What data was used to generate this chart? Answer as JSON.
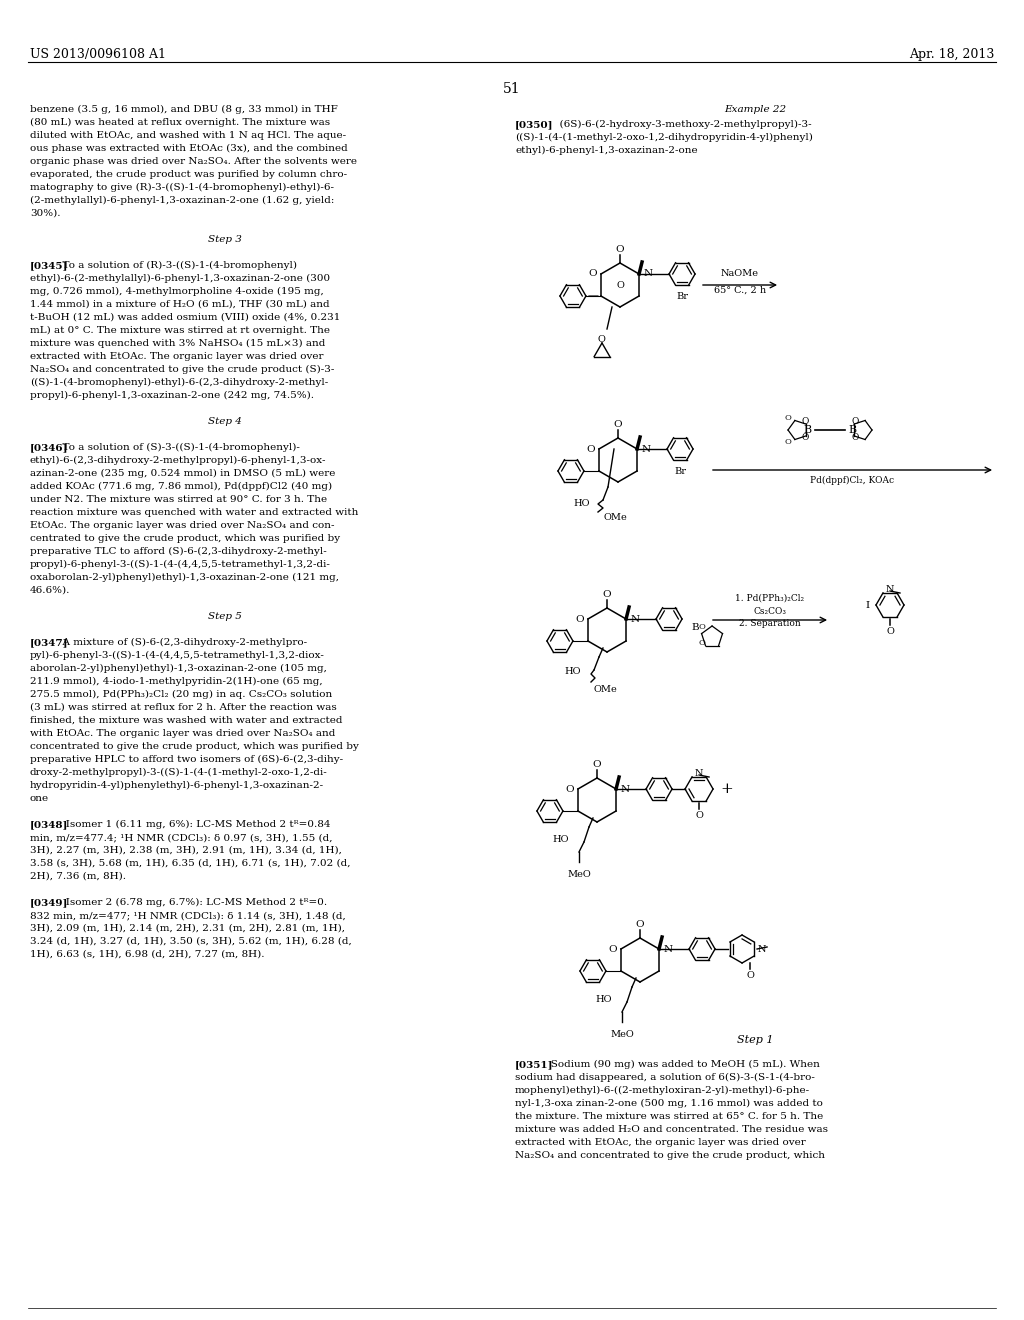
{
  "page_header_left": "US 2013/0096108 A1",
  "page_header_right": "Apr. 18, 2013",
  "page_number": "51",
  "bg": "#ffffff",
  "left_col": [
    "benzene (3.5 g, 16 mmol), and DBU (8 g, 33 mmol) in THF",
    "(80 mL) was heated at reflux overnight. The mixture was",
    "diluted with EtOAc, and washed with 1 N aq HCl. The aque-",
    "ous phase was extracted with EtOAc (3x), and the combined",
    "organic phase was dried over Na₂SO₄. After the solvents were",
    "evaporated, the crude product was purified by column chro-",
    "matography to give (R)-3-((S)-1-(4-bromophenyl)-ethyl)-6-",
    "(2-methylallyl)-6-phenyl-1,3-oxazinan-2-one (1.62 g, yield:",
    "30%).",
    "",
    "Step 3",
    "",
    "[0345]  To a solution of (R)-3-((S)-1-(4-bromophenyl)",
    "ethyl)-6-(2-methylallyl)-6-phenyl-1,3-oxazinan-2-one (300",
    "mg, 0.726 mmol), 4-methylmorpholine 4-oxide (195 mg,",
    "1.44 mmol) in a mixture of H₂O (6 mL), THF (30 mL) and",
    "t-BuOH (12 mL) was added osmium (VIII) oxide (4%, 0.231",
    "mL) at 0° C. The mixture was stirred at rt overnight. The",
    "mixture was quenched with 3% NaHSO₄ (15 mL×3) and",
    "extracted with EtOAc. The organic layer was dried over",
    "Na₂SO₄ and concentrated to give the crude product (S)-3-",
    "((S)-1-(4-bromophenyl)-ethyl)-6-(2,3-dihydroxy-2-methyl-",
    "propyl)-6-phenyl-1,3-oxazinan-2-one (242 mg, 74.5%).",
    "",
    "Step 4",
    "",
    "[0346]  To a solution of (S)-3-((S)-1-(4-bromophenyl)-",
    "ethyl)-6-(2,3-dihydroxy-2-methylpropyl)-6-phenyl-1,3-ox-",
    "azinan-2-one (235 mg, 0.524 mmol) in DMSO (5 mL) were",
    "added KOAc (771.6 mg, 7.86 mmol), Pd(dppf)Cl2 (40 mg)",
    "under N2. The mixture was stirred at 90° C. for 3 h. The",
    "reaction mixture was quenched with water and extracted with",
    "EtOAc. The organic layer was dried over Na₂SO₄ and con-",
    "centrated to give the crude product, which was purified by",
    "preparative TLC to afford (S)-6-(2,3-dihydroxy-2-methyl-",
    "propyl)-6-phenyl-3-((S)-1-(4-(4,4,5,5-tetramethyl-1,3,2-di-",
    "oxaborolan-2-yl)phenyl)ethyl)-1,3-oxazinan-2-one (121 mg,",
    "46.6%).",
    "",
    "Step 5",
    "",
    "[0347]  A mixture of (S)-6-(2,3-dihydroxy-2-methylpro-",
    "pyl)-6-phenyl-3-((S)-1-(4-(4,4,5,5-tetramethyl-1,3,2-diox-",
    "aborolan-2-yl)phenyl)ethyl)-1,3-oxazinan-2-one (105 mg,",
    "211.9 mmol), 4-iodo-1-methylpyridin-2(1H)-one (65 mg,",
    "275.5 mmol), Pd(PPh₃)₂Cl₂ (20 mg) in aq. Cs₂CO₃ solution",
    "(3 mL) was stirred at reflux for 2 h. After the reaction was",
    "finished, the mixture was washed with water and extracted",
    "with EtOAc. The organic layer was dried over Na₂SO₄ and",
    "concentrated to give the crude product, which was purified by",
    "preparative HPLC to afford two isomers of (6S)-6-(2,3-dihy-",
    "droxy-2-methylpropyl)-3-((S)-1-(4-(1-methyl-2-oxo-1,2-di-",
    "hydropyridin-4-yl)phenylethyl)-6-phenyl-1,3-oxazinan-2-",
    "one",
    "",
    "[0348]   Isomer 1 (6.11 mg, 6%): LC-MS Method 2 tᴿ=0.84",
    "min, m/z=477.4; ¹H NMR (CDCl₃): δ 0.97 (s, 3H), 1.55 (d,",
    "3H), 2.27 (m, 3H), 2.38 (m, 3H), 2.91 (m, 1H), 3.34 (d, 1H),",
    "3.58 (s, 3H), 5.68 (m, 1H), 6.35 (d, 1H), 6.71 (s, 1H), 7.02 (d,",
    "2H), 7.36 (m, 8H).",
    "",
    "[0349]   Isomer 2 (6.78 mg, 6.7%): LC-MS Method 2 tᴿ=0.",
    "832 min, m/z=477; ¹H NMR (CDCl₃): δ 1.14 (s, 3H), 1.48 (d,",
    "3H), 2.09 (m, 1H), 2.14 (m, 2H), 2.31 (m, 2H), 2.81 (m, 1H),",
    "3.24 (d, 1H), 3.27 (d, 1H), 3.50 (s, 3H), 5.62 (m, 1H), 6.28 (d,",
    "1H), 6.63 (s, 1H), 6.98 (d, 2H), 7.27 (m, 8H)."
  ],
  "right_header": "Example 22",
  "right_p0350_1": "[0350]   (6S)-6-(2-hydroxy-3-methoxy-2-methylpropyl)-3-",
  "right_p0350_2": "((S)-1-(4-(1-methyl-2-oxo-1,2-dihydropyridin-4-yl)phenyl)",
  "right_p0350_3": "ethyl)-6-phenyl-1,3-oxazinan-2-one",
  "step1_header": "Step 1",
  "right_p0351_lines": [
    "[0351]   Sodium (90 mg) was added to MeOH (5 mL). When",
    "sodium had disappeared, a solution of 6(S)-3-(S-1-(4-bro-",
    "mophenyl)ethyl)-6-((2-methyloxiran-2-yl)-methyl)-6-phe-",
    "nyl-1,3-oxa zinan-2-one (500 mg, 1.16 mmol) was added to",
    "the mixture. The mixture was stirred at 65° C. for 5 h. The",
    "mixture was added H₂O and concentrated. The residue was",
    "extracted with EtOAc, the organic layer was dried over",
    "Na₂SO₄ and concentrated to give the crude product, which"
  ]
}
